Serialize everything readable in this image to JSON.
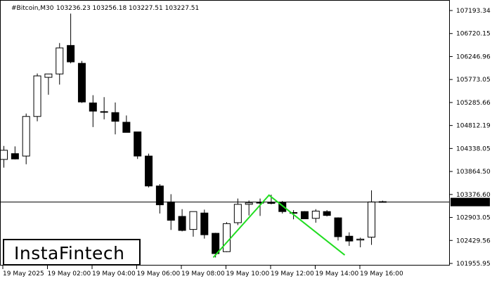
{
  "header": {
    "symbol": "#Bitcoin,M30",
    "ohlc": "103236.23 103256.18 103227.51 103227.51"
  },
  "logo": {
    "text": "InstaFintech"
  },
  "colors": {
    "bull_body": "#ffffff",
    "bear_body": "#000000",
    "pattern_line": "#22dd22",
    "price_label_bg": "#000000",
    "price_label_text": "#ffffff"
  },
  "chart_data": {
    "type": "candlestick",
    "title": "#Bitcoin,M30",
    "ylim": [
      101955.95,
      107193.34
    ],
    "y_ticks": [
      "107193.34",
      "106720.15",
      "106246.96",
      "105773.05",
      "105285.66",
      "104812.19",
      "104338.05",
      "103864.50",
      "103376.60",
      "102903.05",
      "102429.56",
      "101955.95"
    ],
    "x_tick_labels": [
      "19 May 2025",
      "19 May 02:00",
      "19 May 04:00",
      "19 May 06:00",
      "19 May 08:00",
      "19 May 10:00",
      "19 May 12:00",
      "19 May 14:00",
      "19 May 16:00"
    ],
    "current_price": "103227.51",
    "pattern": {
      "name": "double bottom",
      "points": [
        {
          "x_index": 18.8,
          "price": 102080
        },
        {
          "x_index": 23.8,
          "price": 103370
        },
        {
          "x_index": 30.6,
          "price": 102130
        }
      ]
    },
    "candles": [
      {
        "o": 104110,
        "h": 104390,
        "l": 103940,
        "c": 104300
      },
      {
        "o": 104230,
        "h": 104380,
        "l": 104110,
        "c": 104120
      },
      {
        "o": 104180,
        "h": 105060,
        "l": 104010,
        "c": 105000
      },
      {
        "o": 105000,
        "h": 105890,
        "l": 104900,
        "c": 105840
      },
      {
        "o": 105810,
        "h": 105880,
        "l": 105450,
        "c": 105880
      },
      {
        "o": 105880,
        "h": 106520,
        "l": 105660,
        "c": 106420
      },
      {
        "o": 106470,
        "h": 107130,
        "l": 106100,
        "c": 106130
      },
      {
        "o": 106100,
        "h": 106150,
        "l": 105280,
        "c": 105300
      },
      {
        "o": 105280,
        "h": 105440,
        "l": 104780,
        "c": 105110
      },
      {
        "o": 105090,
        "h": 105400,
        "l": 104940,
        "c": 105100
      },
      {
        "o": 105080,
        "h": 105290,
        "l": 104630,
        "c": 104900
      },
      {
        "o": 104880,
        "h": 105020,
        "l": 104680,
        "c": 104670
      },
      {
        "o": 104680,
        "h": 104680,
        "l": 104120,
        "c": 104180
      },
      {
        "o": 104180,
        "h": 104230,
        "l": 103530,
        "c": 103560
      },
      {
        "o": 103560,
        "h": 103600,
        "l": 102990,
        "c": 103170
      },
      {
        "o": 103230,
        "h": 103390,
        "l": 102650,
        "c": 102850
      },
      {
        "o": 102930,
        "h": 103080,
        "l": 102620,
        "c": 102640
      },
      {
        "o": 102660,
        "h": 103010,
        "l": 102510,
        "c": 103030
      },
      {
        "o": 103000,
        "h": 103070,
        "l": 102470,
        "c": 102550
      },
      {
        "o": 102580,
        "h": 102590,
        "l": 102080,
        "c": 102160
      },
      {
        "o": 102200,
        "h": 102810,
        "l": 102190,
        "c": 102780
      },
      {
        "o": 102800,
        "h": 103300,
        "l": 102750,
        "c": 103180
      },
      {
        "o": 103180,
        "h": 103260,
        "l": 102950,
        "c": 103210
      },
      {
        "o": 103210,
        "h": 103300,
        "l": 102940,
        "c": 103220
      },
      {
        "o": 103220,
        "h": 103380,
        "l": 103180,
        "c": 103200
      },
      {
        "o": 103220,
        "h": 103250,
        "l": 102990,
        "c": 103030
      },
      {
        "o": 103010,
        "h": 103060,
        "l": 102870,
        "c": 103000
      },
      {
        "o": 103030,
        "h": 103040,
        "l": 102880,
        "c": 102880
      },
      {
        "o": 102890,
        "h": 103080,
        "l": 102800,
        "c": 103040
      },
      {
        "o": 103030,
        "h": 103060,
        "l": 102930,
        "c": 102950
      },
      {
        "o": 102900,
        "h": 102910,
        "l": 102430,
        "c": 102510
      },
      {
        "o": 102520,
        "h": 102600,
        "l": 102320,
        "c": 102420
      },
      {
        "o": 102440,
        "h": 102490,
        "l": 102290,
        "c": 102460
      },
      {
        "o": 102500,
        "h": 103470,
        "l": 102340,
        "c": 103230
      },
      {
        "o": 103236,
        "h": 103256,
        "l": 103227,
        "c": 103228
      }
    ]
  }
}
